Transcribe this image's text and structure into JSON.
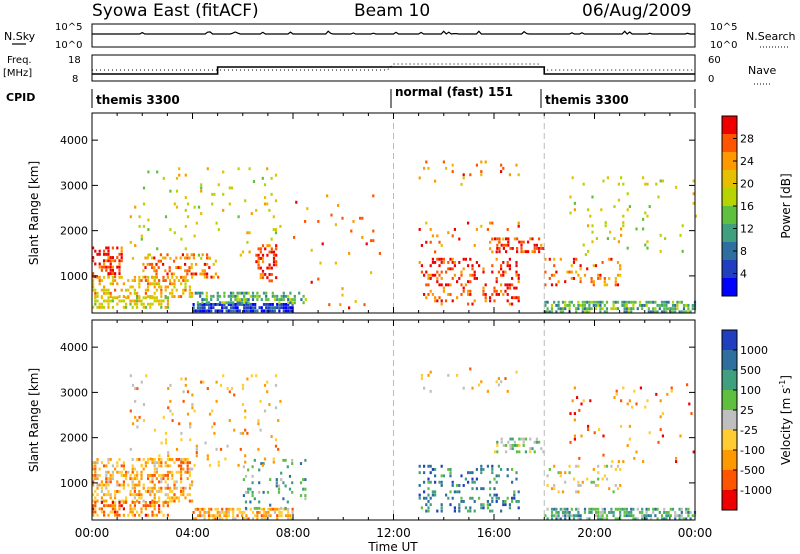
{
  "header": {
    "station": "Syowa East (fitACF)",
    "beam": "Beam 10",
    "date": "06/Aug/2009"
  },
  "nsky_panel": {
    "left_label": "N.Sky",
    "left_ticks": [
      "10^5",
      "10^0"
    ],
    "right_label": "N.Search",
    "right_ticks": [
      "10^5",
      "10^0"
    ]
  },
  "freq_panel": {
    "left_label_line1": "Freq.",
    "left_label_line2": "[MHz]",
    "left_ticks": [
      "18",
      "8"
    ],
    "right_label": "Nave",
    "right_ticks": [
      "60",
      "0"
    ]
  },
  "cpid_panel": {
    "label": "CPID",
    "segments": [
      {
        "name": "themis 3300",
        "start_hour": 0,
        "end_hour": 12
      },
      {
        "name": "normal (fast) 151",
        "start_hour": 12,
        "end_hour": 18
      },
      {
        "name": "themis 3300",
        "start_hour": 18,
        "end_hour": 24
      }
    ]
  },
  "power_colorbar": {
    "label": "Power [dB]",
    "ticks": [
      "28",
      "24",
      "20",
      "16",
      "12",
      "8",
      "4"
    ],
    "colors": [
      "#ee0000",
      "#ff5500",
      "#ff9900",
      "#e6c000",
      "#b8d400",
      "#5fbf3f",
      "#3f9f7f",
      "#2f6f9f",
      "#1f3fbf",
      "#0000ff"
    ]
  },
  "velocity_colorbar": {
    "label": "Velocity [m s",
    "label_sup": "-1",
    "label_end": "]",
    "ticks": [
      "1000",
      "500",
      "100",
      "25",
      "-25",
      "-100",
      "-500",
      "-1000"
    ],
    "colors": [
      "#1f3fbf",
      "#2f6f9f",
      "#3f9f7f",
      "#5fbf3f",
      "#bfbfbf",
      "#ffcc33",
      "#ff9900",
      "#ff5500",
      "#ee0000"
    ]
  },
  "chart_data": {
    "type": "heatmap",
    "xlabel": "Time UT",
    "ylabel": "Slant Range [km]",
    "x_ticks": [
      "00:00",
      "04:00",
      "08:00",
      "12:00",
      "16:00",
      "20:00",
      "00:00"
    ],
    "x_range_hours": [
      0,
      24
    ],
    "y_ticks": [
      "1000",
      "2000",
      "3000",
      "4000"
    ],
    "y_range_km": [
      180,
      4600
    ],
    "mode_change_hours": [
      12,
      18
    ],
    "power_regions": [
      {
        "t": [
          0.0,
          1.2
        ],
        "r": [
          1000,
          1650
        ],
        "level": 1,
        "density": 0.45
      },
      {
        "t": [
          0.0,
          4.0
        ],
        "r": [
          550,
          1000
        ],
        "level": 3,
        "density": 0.4
      },
      {
        "t": [
          0.0,
          3.0
        ],
        "r": [
          280,
          550
        ],
        "level": 4,
        "density": 0.55
      },
      {
        "t": [
          4.0,
          8.0
        ],
        "r": [
          200,
          400
        ],
        "level": 9,
        "density": 0.85
      },
      {
        "t": [
          4.0,
          8.5
        ],
        "r": [
          400,
          650
        ],
        "level": 6,
        "density": 0.45
      },
      {
        "t": [
          2.0,
          5.0
        ],
        "r": [
          1000,
          1500
        ],
        "level": 2,
        "density": 0.3
      },
      {
        "t": [
          1.5,
          7.5
        ],
        "r": [
          1400,
          3400
        ],
        "level": 4,
        "density": 0.05
      },
      {
        "t": [
          6.5,
          7.3
        ],
        "r": [
          900,
          1700
        ],
        "level": 1,
        "density": 0.35
      },
      {
        "t": [
          8.0,
          11.5
        ],
        "r": [
          300,
          2800
        ],
        "level": 2,
        "density": 0.025
      },
      {
        "t": [
          13.0,
          17.0
        ],
        "r": [
          350,
          1400
        ],
        "level": 1,
        "density": 0.22
      },
      {
        "t": [
          13.0,
          17.0
        ],
        "r": [
          1500,
          2200
        ],
        "level": 2,
        "density": 0.06
      },
      {
        "t": [
          16.0,
          18.0
        ],
        "r": [
          1500,
          1850
        ],
        "level": 1,
        "density": 0.4
      },
      {
        "t": [
          13.0,
          17.0
        ],
        "r": [
          3000,
          3550
        ],
        "level": 2,
        "density": 0.07
      },
      {
        "t": [
          18.0,
          24.0
        ],
        "r": [
          200,
          450
        ],
        "level": 6,
        "density": 0.6
      },
      {
        "t": [
          18.0,
          21.0
        ],
        "r": [
          800,
          1400
        ],
        "level": 2,
        "density": 0.15
      },
      {
        "t": [
          19.0,
          24.0
        ],
        "r": [
          1500,
          3200
        ],
        "level": 4,
        "density": 0.04
      }
    ],
    "velocity_regions": [
      {
        "t": [
          0.0,
          4.0
        ],
        "r": [
          600,
          1550
        ],
        "level": 6,
        "density": 0.45
      },
      {
        "t": [
          0.0,
          3.0
        ],
        "r": [
          250,
          600
        ],
        "level": 7,
        "density": 0.45
      },
      {
        "t": [
          4.0,
          8.0
        ],
        "r": [
          200,
          450
        ],
        "level": 6,
        "density": 0.6
      },
      {
        "t": [
          6.0,
          8.5
        ],
        "r": [
          450,
          1600
        ],
        "level": 3,
        "density": 0.15
      },
      {
        "t": [
          1.5,
          7.5
        ],
        "r": [
          1400,
          3400
        ],
        "level": 6,
        "density": 0.05
      },
      {
        "t": [
          13.0,
          17.0
        ],
        "r": [
          350,
          1400
        ],
        "level": 2,
        "density": 0.22
      },
      {
        "t": [
          16.0,
          18.0
        ],
        "r": [
          1700,
          2000
        ],
        "level": 4,
        "density": 0.35
      },
      {
        "t": [
          13.0,
          17.0
        ],
        "r": [
          3000,
          3550
        ],
        "level": 6,
        "density": 0.07
      },
      {
        "t": [
          18.0,
          24.0
        ],
        "r": [
          200,
          450
        ],
        "level": 3,
        "density": 0.55
      },
      {
        "t": [
          18.0,
          21.0
        ],
        "r": [
          800,
          1400
        ],
        "level": 5,
        "density": 0.15
      },
      {
        "t": [
          19.0,
          24.0
        ],
        "r": [
          1500,
          3200
        ],
        "level": 7,
        "density": 0.04
      }
    ]
  }
}
